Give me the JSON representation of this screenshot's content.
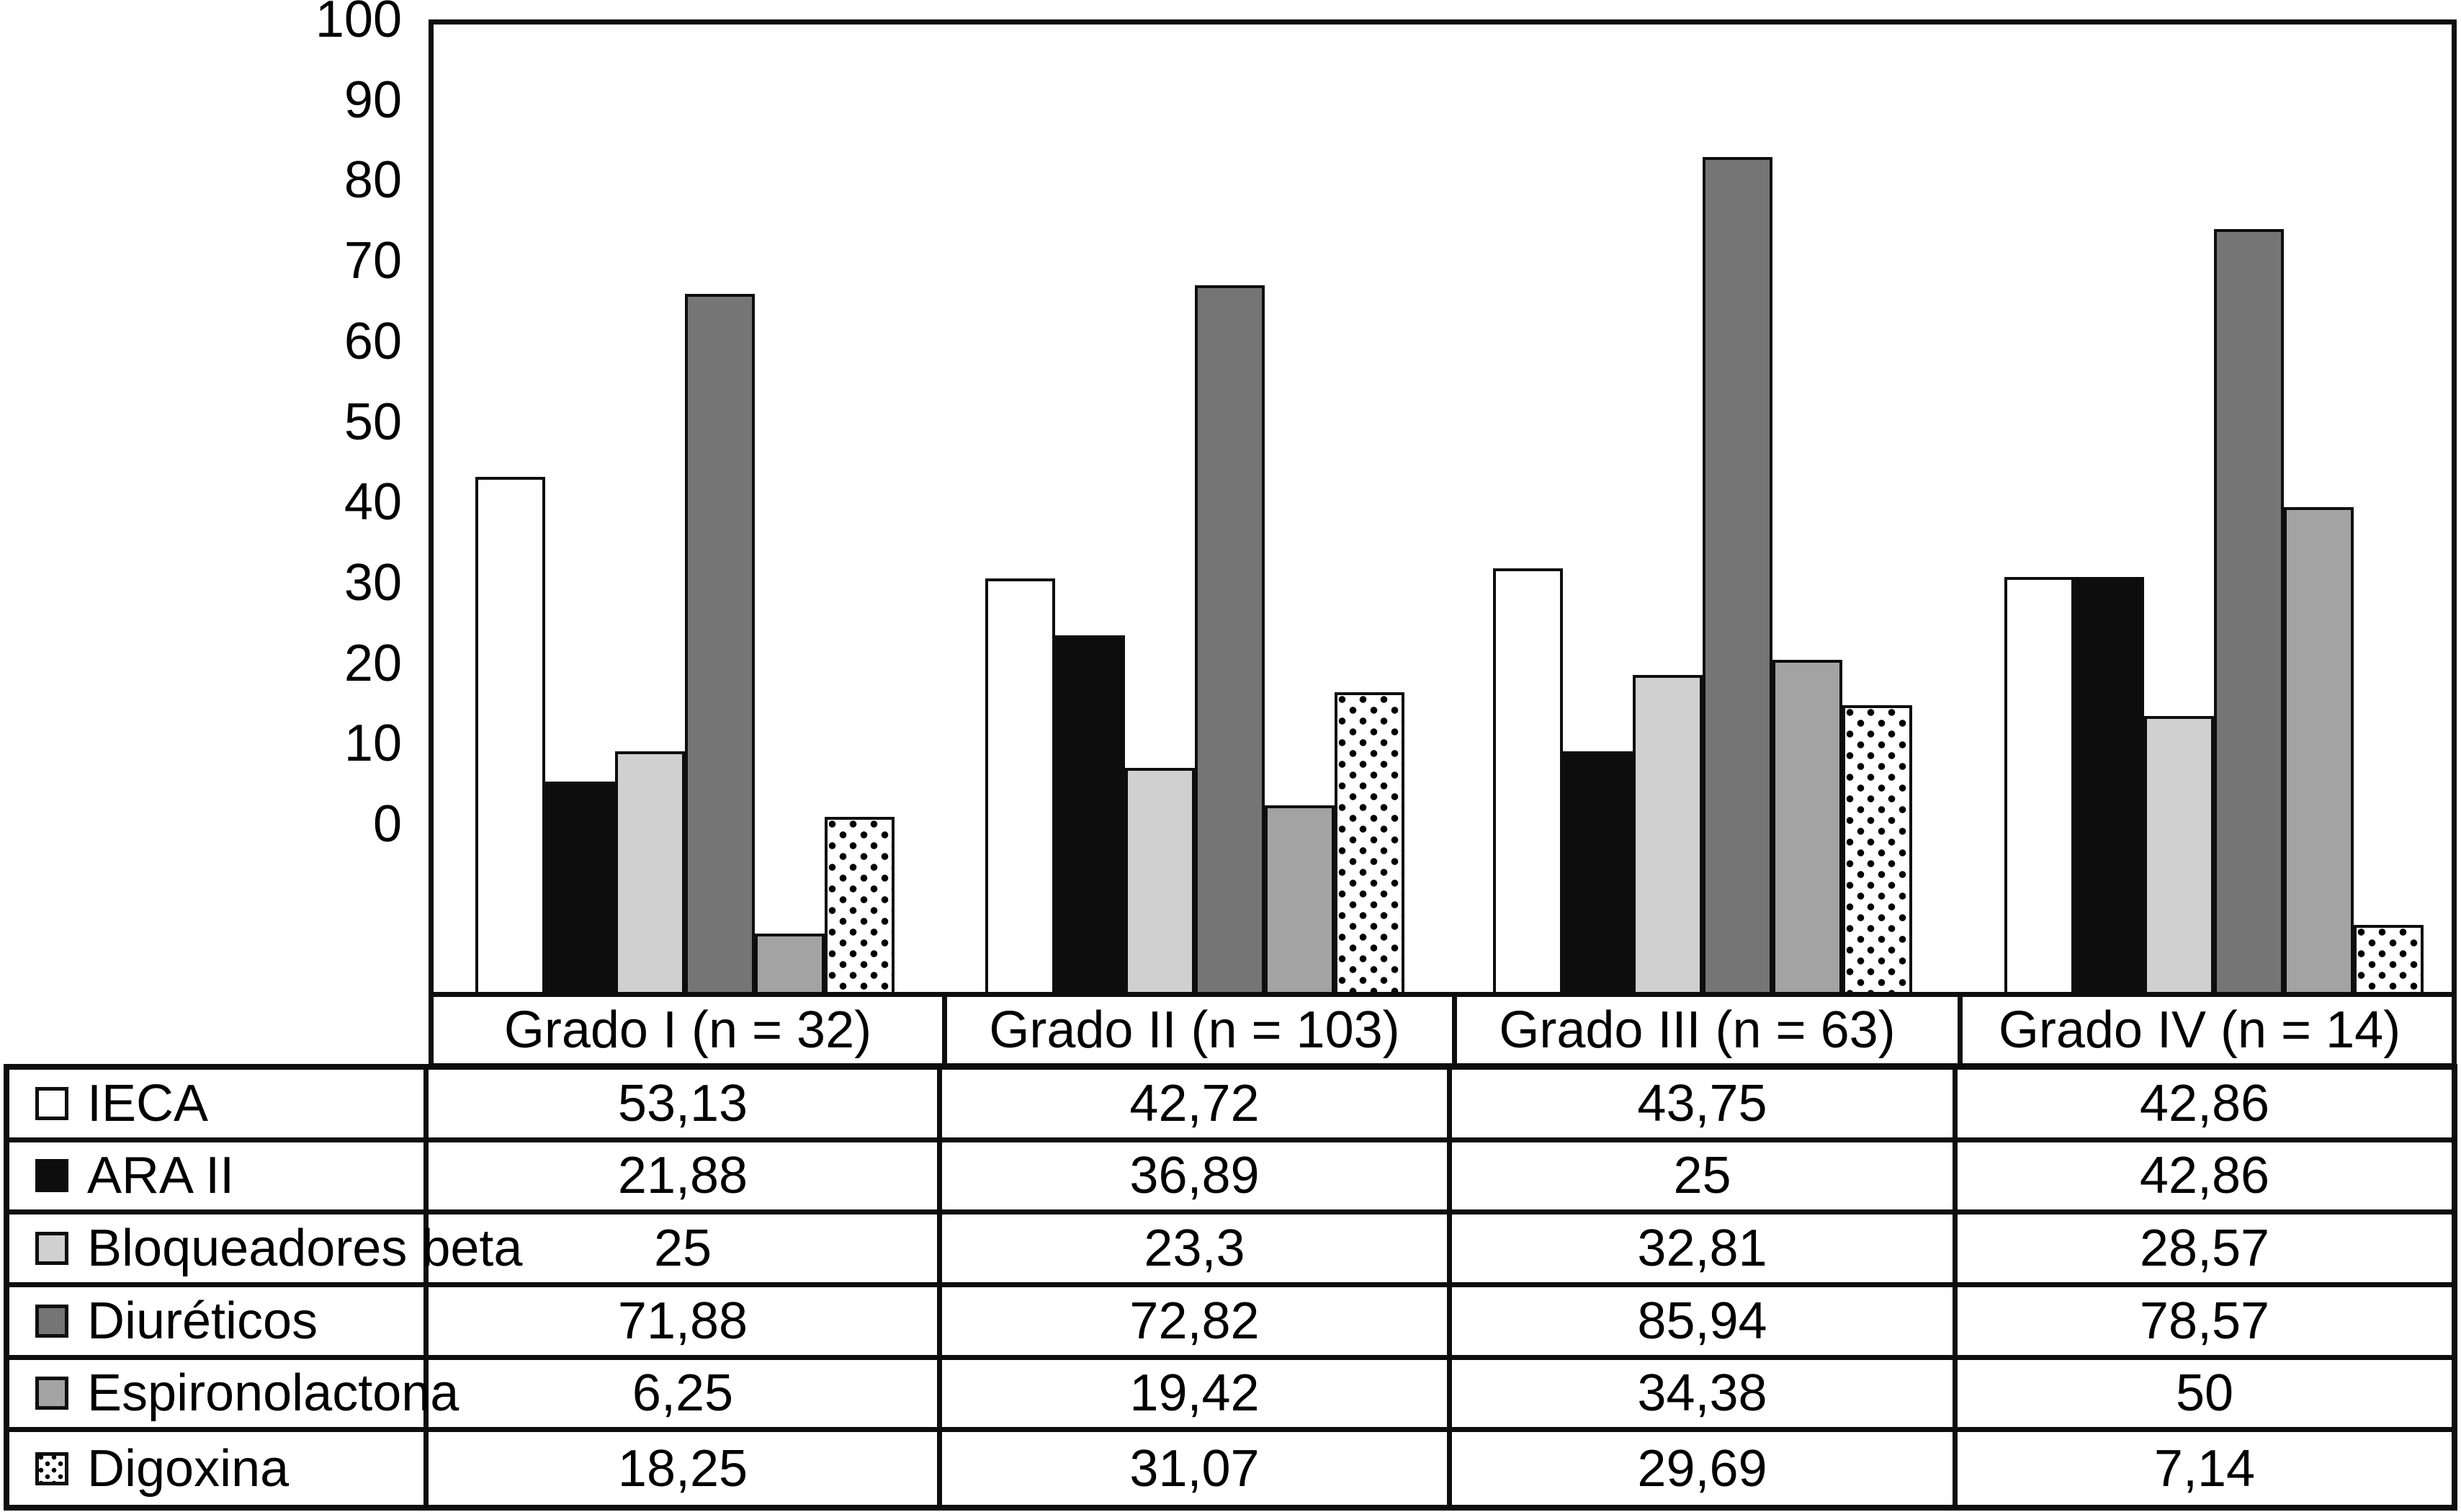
{
  "chart_data": {
    "type": "bar",
    "title": "",
    "xlabel": "",
    "ylabel": "",
    "ylim": [
      0,
      100
    ],
    "grid": false,
    "legend_position": "table-left-column",
    "decimal_separator": ",",
    "yticks": [
      100,
      90,
      80,
      70,
      60,
      50,
      40,
      30,
      20,
      10,
      0
    ],
    "ytick_labels": [
      "100",
      "90",
      "80",
      "70",
      "60",
      "50",
      "40",
      "30",
      "20",
      "10",
      "0"
    ],
    "categories": [
      "Grado I (n = 32)",
      "Grado II (n = 103)",
      "Grado III (n = 63)",
      "Grado IV (n = 14)"
    ],
    "series": [
      {
        "name": "IECA",
        "key": "ieca",
        "fill": "#ffffff",
        "pattern": "solid",
        "values": [
          53.13,
          42.72,
          43.75,
          42.86
        ],
        "labels": [
          "53,13",
          "42,72",
          "43,75",
          "42,86"
        ]
      },
      {
        "name": "ARA II",
        "key": "ara-ii",
        "fill": "#0d0d0d",
        "pattern": "solid",
        "values": [
          21.88,
          36.89,
          25,
          42.86
        ],
        "labels": [
          "21,88",
          "36,89",
          "25",
          "42,86"
        ]
      },
      {
        "name": "Bloqueadores beta",
        "key": "bloqueadores-beta",
        "fill": "#d0d0d0",
        "pattern": "solid",
        "values": [
          25,
          23.3,
          32.81,
          28.57
        ],
        "labels": [
          "25",
          "23,3",
          "32,81",
          "28,57"
        ]
      },
      {
        "name": "Diuréticos",
        "key": "diureticos",
        "fill": "#757575",
        "pattern": "solid",
        "values": [
          71.88,
          72.82,
          85.94,
          78.57
        ],
        "labels": [
          "71,88",
          "72,82",
          "85,94",
          "78,57"
        ]
      },
      {
        "name": "Espironolactona",
        "key": "espironolactona",
        "fill": "#a3a3a3",
        "pattern": "solid",
        "values": [
          6.25,
          19.42,
          34.38,
          50
        ],
        "labels": [
          "6,25",
          "19,42",
          "34,38",
          "50"
        ]
      },
      {
        "name": "Digoxina",
        "key": "digoxina",
        "fill": "#ffffff",
        "pattern": "dots",
        "values": [
          18.25,
          31.07,
          29.69,
          7.14
        ],
        "labels": [
          "18,25",
          "31,07",
          "29,69",
          "7,14"
        ]
      }
    ]
  },
  "colors": {
    "background": "#ffffff",
    "line": "#0e0e0e",
    "bar_border": "#0e0e0e",
    "text": "#000000"
  }
}
